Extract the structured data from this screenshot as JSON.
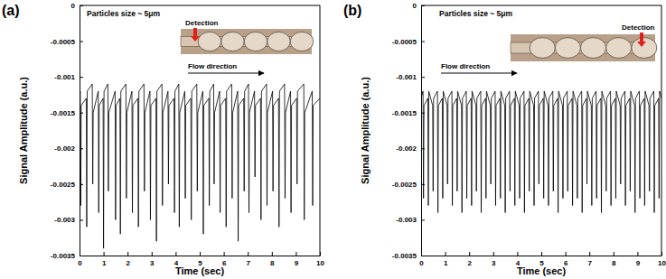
{
  "chart_data": [
    {
      "type": "line",
      "title": "(a)",
      "annotations": [
        "Particles size ~ 5μm",
        "Detection",
        "Flow direction"
      ],
      "x_label": "Time (sec)",
      "y_label": "Signal Amplitude (a.u.)",
      "color": "#000000",
      "xlim": [
        0,
        10
      ],
      "xticks": [
        0,
        1,
        2,
        3,
        4,
        5,
        6,
        7,
        8,
        9,
        10
      ],
      "ylim": [
        -0.0035,
        0
      ],
      "yticks": [
        0,
        -0.0005,
        -0.001,
        -0.0015,
        -0.002,
        -0.0025,
        -0.003,
        -0.0035
      ],
      "x": [
        0,
        0.03,
        0.05,
        0.07,
        0.28,
        0.3,
        0.32,
        0.53,
        0.55,
        0.57,
        0.78,
        0.8,
        0.82,
        0.98,
        1.0,
        1.02,
        1.18,
        1.2,
        1.22,
        1.48,
        1.5,
        1.52,
        1.68,
        1.7,
        1.72,
        1.93,
        1.95,
        1.97,
        2.18,
        2.2,
        2.22,
        2.43,
        2.45,
        2.47,
        2.68,
        2.7,
        2.72,
        2.93,
        2.95,
        2.97,
        3.18,
        3.2,
        3.22,
        3.43,
        3.45,
        3.47,
        3.68,
        3.7,
        3.72,
        3.93,
        3.95,
        3.97,
        4.13,
        4.15,
        4.17,
        4.38,
        4.4,
        4.42,
        4.63,
        4.65,
        4.67,
        4.88,
        4.9,
        4.92,
        5.13,
        5.15,
        5.17,
        5.38,
        5.4,
        5.42,
        5.58,
        5.6,
        5.62,
        5.83,
        5.85,
        5.87,
        6.08,
        6.1,
        6.12,
        6.33,
        6.35,
        6.37,
        6.58,
        6.6,
        6.62,
        6.83,
        6.85,
        6.87,
        7.03,
        7.05,
        7.07,
        7.28,
        7.3,
        7.32,
        7.53,
        7.55,
        7.57,
        7.78,
        7.8,
        7.82,
        8.03,
        8.05,
        8.07,
        8.28,
        8.3,
        8.32,
        8.53,
        8.55,
        8.57,
        8.78,
        8.8,
        8.82,
        9.03,
        9.05,
        9.07,
        9.33,
        9.35,
        9.37,
        9.68,
        9.7,
        9.72,
        10
      ],
      "values": [
        -0.0013,
        -0.0012,
        -0.0028,
        -0.0014,
        -0.0013,
        -0.0031,
        -0.0012,
        -0.0011,
        -0.0025,
        -0.0015,
        -0.0012,
        -0.0029,
        -0.0014,
        -0.0013,
        -0.0034,
        -0.0012,
        -0.0011,
        -0.0026,
        -0.0015,
        -0.0012,
        -0.003,
        -0.0014,
        -0.0013,
        -0.0032,
        -0.0012,
        -0.0011,
        -0.0027,
        -0.0015,
        -0.0012,
        -0.0029,
        -0.0014,
        -0.0013,
        -0.0031,
        -0.0012,
        -0.0011,
        -0.0026,
        -0.0015,
        -0.0012,
        -0.003,
        -0.0014,
        -0.0013,
        -0.0033,
        -0.0012,
        -0.0011,
        -0.0028,
        -0.0015,
        -0.0012,
        -0.0025,
        -0.0014,
        -0.0013,
        -0.0029,
        -0.0012,
        -0.0011,
        -0.0031,
        -0.0015,
        -0.0012,
        -0.0027,
        -0.0014,
        -0.0013,
        -0.003,
        -0.0012,
        -0.0011,
        -0.0026,
        -0.0015,
        -0.0012,
        -0.0032,
        -0.0014,
        -0.0013,
        -0.0028,
        -0.0012,
        -0.0011,
        -0.0025,
        -0.0015,
        -0.0012,
        -0.0029,
        -0.0014,
        -0.0013,
        -0.0031,
        -0.0012,
        -0.0011,
        -0.0027,
        -0.0015,
        -0.0012,
        -0.0033,
        -0.0014,
        -0.0013,
        -0.0026,
        -0.0012,
        -0.0011,
        -0.0029,
        -0.0015,
        -0.0012,
        -0.0024,
        -0.0014,
        -0.0013,
        -0.003,
        -0.0012,
        -0.0011,
        -0.0028,
        -0.0015,
        -0.0012,
        -0.0026,
        -0.0014,
        -0.0013,
        -0.0031,
        -0.0012,
        -0.0011,
        -0.0027,
        -0.0015,
        -0.0012,
        -0.0029,
        -0.0014,
        -0.0013,
        -0.0025,
        -0.0012,
        -0.0011,
        -0.003,
        -0.0015,
        -0.0012,
        -0.0028,
        -0.0014,
        -0.0013
      ]
    },
    {
      "type": "line",
      "title": "(b)",
      "annotations": [
        "Particles size ~ 5μm",
        "Detection",
        "Flow direction"
      ],
      "x_label": "Time (sec)",
      "y_label": "Signal Amplitude (a.u.)",
      "color": "#000000",
      "xlim": [
        0,
        10
      ],
      "xticks": [
        0,
        1,
        2,
        3,
        4,
        5,
        6,
        7,
        8,
        9,
        10
      ],
      "ylim": [
        -0.0035,
        0
      ],
      "yticks": [
        0,
        -0.0005,
        -0.001,
        -0.0015,
        -0.002,
        -0.0025,
        -0.003,
        -0.0035
      ],
      "x": [
        0,
        0.08,
        0.1,
        0.12,
        0.28,
        0.3,
        0.32,
        0.48,
        0.5,
        0.52,
        0.68,
        0.7,
        0.72,
        0.88,
        0.9,
        0.92,
        1.08,
        1.1,
        1.12,
        1.28,
        1.3,
        1.32,
        1.48,
        1.5,
        1.52,
        1.68,
        1.7,
        1.72,
        1.88,
        1.9,
        1.92,
        2.08,
        2.1,
        2.12,
        2.28,
        2.3,
        2.32,
        2.48,
        2.5,
        2.52,
        2.68,
        2.7,
        2.72,
        2.88,
        2.9,
        2.92,
        3.08,
        3.1,
        3.12,
        3.28,
        3.3,
        3.32,
        3.48,
        3.5,
        3.52,
        3.68,
        3.7,
        3.72,
        3.88,
        3.9,
        3.92,
        4.08,
        4.1,
        4.12,
        4.28,
        4.3,
        4.32,
        4.48,
        4.5,
        4.52,
        4.68,
        4.7,
        4.72,
        4.88,
        4.9,
        4.92,
        5.08,
        5.1,
        5.12,
        5.28,
        5.3,
        5.32,
        5.48,
        5.5,
        5.52,
        5.68,
        5.7,
        5.72,
        5.88,
        5.9,
        5.92,
        6.08,
        6.1,
        6.12,
        6.28,
        6.3,
        6.32,
        6.48,
        6.5,
        6.52,
        6.68,
        6.7,
        6.72,
        6.88,
        6.9,
        6.92,
        7.08,
        7.1,
        7.12,
        7.28,
        7.3,
        7.32,
        7.48,
        7.5,
        7.52,
        7.68,
        7.7,
        7.72,
        7.88,
        7.9,
        7.92,
        8.08,
        8.1,
        8.12,
        8.28,
        8.3,
        8.32,
        8.48,
        8.5,
        8.52,
        8.68,
        8.7,
        8.72,
        8.88,
        8.9,
        8.92,
        9.08,
        9.1,
        9.12,
        9.28,
        9.3,
        9.32,
        9.48,
        9.5,
        9.52,
        9.68,
        9.7,
        9.72,
        9.88,
        9.9,
        9.92,
        10
      ],
      "values": [
        -0.0013,
        -0.0012,
        -0.0027,
        -0.0014,
        -0.0013,
        -0.0028,
        -0.0012,
        -0.0014,
        -0.0026,
        -0.0013,
        -0.0012,
        -0.0029,
        -0.0014,
        -0.0013,
        -0.0027,
        -0.0012,
        -0.0014,
        -0.0025,
        -0.0013,
        -0.0012,
        -0.0028,
        -0.0014,
        -0.0013,
        -0.0026,
        -0.0012,
        -0.0014,
        -0.0029,
        -0.0013,
        -0.0012,
        -0.0027,
        -0.0014,
        -0.0013,
        -0.0028,
        -0.0012,
        -0.0014,
        -0.0026,
        -0.0013,
        -0.0012,
        -0.0029,
        -0.0014,
        -0.0013,
        -0.0027,
        -0.0012,
        -0.0014,
        -0.0025,
        -0.0013,
        -0.0012,
        -0.0028,
        -0.0014,
        -0.0013,
        -0.0027,
        -0.0012,
        -0.0014,
        -0.0029,
        -0.0013,
        -0.0012,
        -0.0026,
        -0.0014,
        -0.0013,
        -0.0028,
        -0.0012,
        -0.0014,
        -0.0027,
        -0.0013,
        -0.0012,
        -0.0029,
        -0.0014,
        -0.0013,
        -0.0026,
        -0.0012,
        -0.0014,
        -0.0028,
        -0.0013,
        -0.0012,
        -0.0025,
        -0.0014,
        -0.0013,
        -0.0027,
        -0.0012,
        -0.0014,
        -0.0028,
        -0.0013,
        -0.0012,
        -0.0026,
        -0.0014,
        -0.0013,
        -0.0029,
        -0.0012,
        -0.0014,
        -0.0027,
        -0.0013,
        -0.0012,
        -0.0026,
        -0.0014,
        -0.0013,
        -0.0028,
        -0.0012,
        -0.0014,
        -0.0027,
        -0.0013,
        -0.0012,
        -0.0029,
        -0.0014,
        -0.0013,
        -0.0025,
        -0.0012,
        -0.0014,
        -0.0028,
        -0.0013,
        -0.0012,
        -0.0027,
        -0.0014,
        -0.0013,
        -0.0029,
        -0.0012,
        -0.0014,
        -0.0026,
        -0.0013,
        -0.0012,
        -0.0028,
        -0.0014,
        -0.0013,
        -0.0027,
        -0.0012,
        -0.0014,
        -0.0025,
        -0.0013,
        -0.0012,
        -0.0028,
        -0.0014,
        -0.0013,
        -0.0026,
        -0.0012,
        -0.0014,
        -0.0029,
        -0.0013,
        -0.0012,
        -0.0027,
        -0.0014,
        -0.0013,
        -0.0028,
        -0.0012,
        -0.0014,
        -0.0026,
        -0.0013,
        -0.0012,
        -0.0029,
        -0.0014,
        -0.0013,
        -0.0027,
        -0.0012,
        -0.0013
      ]
    }
  ]
}
